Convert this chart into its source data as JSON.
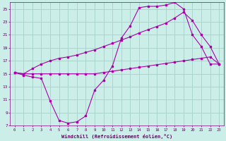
{
  "xlabel": "Windchill (Refroidissement éolien,°C)",
  "background_color": "#cceee8",
  "grid_color": "#aad4cc",
  "line_color": "#aa00aa",
  "xlim": [
    -0.5,
    23.5
  ],
  "ylim": [
    7,
    26
  ],
  "yticks": [
    7,
    9,
    11,
    13,
    15,
    17,
    19,
    21,
    23,
    25
  ],
  "xticks": [
    0,
    1,
    2,
    3,
    4,
    5,
    6,
    7,
    8,
    9,
    10,
    11,
    12,
    13,
    14,
    15,
    16,
    17,
    18,
    19,
    20,
    21,
    22,
    23
  ],
  "line1_x": [
    0,
    1,
    2,
    3,
    4,
    5,
    6,
    7,
    8,
    9,
    10,
    11,
    12,
    13,
    14,
    15,
    16,
    17,
    18,
    19,
    20,
    21,
    22,
    23
  ],
  "line1_y": [
    15.2,
    14.8,
    14.5,
    14.3,
    10.8,
    7.8,
    7.4,
    7.6,
    8.5,
    12.5,
    14.0,
    16.2,
    20.5,
    22.4,
    25.2,
    25.4,
    25.4,
    25.6,
    26.0,
    25.0,
    21.0,
    19.2,
    16.5,
    16.5
  ],
  "line2_x": [
    0,
    1,
    2,
    3,
    4,
    5,
    6,
    7,
    8,
    9,
    10,
    11,
    12,
    13,
    14,
    15,
    16,
    17,
    18,
    19,
    20,
    21,
    22,
    23
  ],
  "line2_y": [
    15.2,
    15.0,
    15.0,
    15.0,
    15.0,
    15.0,
    15.0,
    15.0,
    15.0,
    15.0,
    15.2,
    15.4,
    15.6,
    15.8,
    16.0,
    16.2,
    16.4,
    16.6,
    16.8,
    17.0,
    17.2,
    17.4,
    17.6,
    16.5
  ],
  "line3_x": [
    0,
    1,
    2,
    3,
    4,
    5,
    6,
    7,
    8,
    9,
    10,
    11,
    12,
    13,
    14,
    15,
    16,
    17,
    18,
    19,
    20,
    21,
    22,
    23
  ],
  "line3_y": [
    15.2,
    15.0,
    15.8,
    16.5,
    17.0,
    17.4,
    17.6,
    17.9,
    18.3,
    18.7,
    19.2,
    19.7,
    20.2,
    20.7,
    21.3,
    21.8,
    22.3,
    22.8,
    23.6,
    24.5,
    23.2,
    21.0,
    19.2,
    16.5
  ]
}
